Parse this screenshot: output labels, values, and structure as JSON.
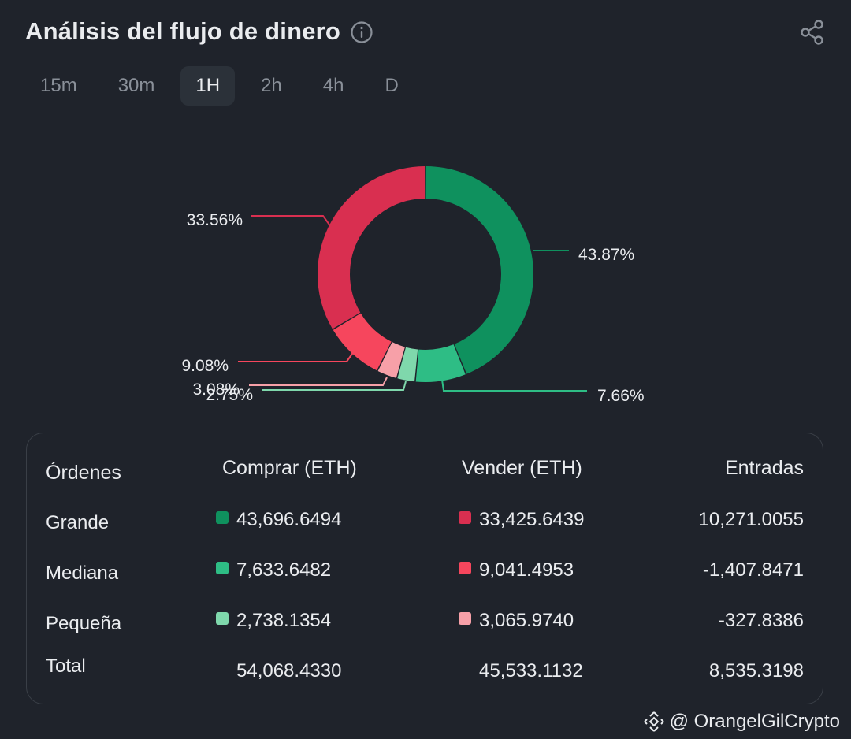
{
  "header": {
    "title": "Análisis del flujo de dinero"
  },
  "tabs": [
    {
      "label": "15m",
      "active": false
    },
    {
      "label": "30m",
      "active": false
    },
    {
      "label": "1H",
      "active": true
    },
    {
      "label": "2h",
      "active": false
    },
    {
      "label": "4h",
      "active": false
    },
    {
      "label": "D",
      "active": false
    }
  ],
  "chart_data": {
    "type": "pie",
    "style": "donut",
    "slices": [
      {
        "label": "43.87%",
        "value": 43.87,
        "color": "#0f915e"
      },
      {
        "label": "7.66%",
        "value": 7.66,
        "color": "#2ebd85"
      },
      {
        "label": "2.75%",
        "value": 2.75,
        "color": "#7fd8ac"
      },
      {
        "label": "3.08%",
        "value": 3.08,
        "color": "#f7a0a8"
      },
      {
        "label": "9.08%",
        "value": 9.08,
        "color": "#f6465d"
      },
      {
        "label": "33.56%",
        "value": 33.56,
        "color": "#d92f50"
      }
    ]
  },
  "table": {
    "headers": {
      "orders": "Órdenes",
      "buy": "Comprar (ETH)",
      "sell": "Vender (ETH)",
      "net": "Entradas"
    },
    "rows": [
      {
        "label": "Grande",
        "buy": "43,696.6494",
        "sell": "33,425.6439",
        "net": "10,271.0055",
        "buy_color": "#0f915e",
        "sell_color": "#d92f50"
      },
      {
        "label": "Mediana",
        "buy": "7,633.6482",
        "sell": "9,041.4953",
        "net": "-1,407.8471",
        "buy_color": "#2ebd85",
        "sell_color": "#f6465d"
      },
      {
        "label": "Pequeña",
        "buy": "2,738.1354",
        "sell": "3,065.9740",
        "net": "-327.8386",
        "buy_color": "#7fd8ac",
        "sell_color": "#f7a0a8"
      }
    ],
    "total": {
      "label": "Total",
      "buy": "54,068.4330",
      "sell": "45,533.1132",
      "net": "8,535.3198"
    }
  },
  "watermark": {
    "text": "@ OrangelGilCrypto",
    "icon": "binance-icon"
  }
}
